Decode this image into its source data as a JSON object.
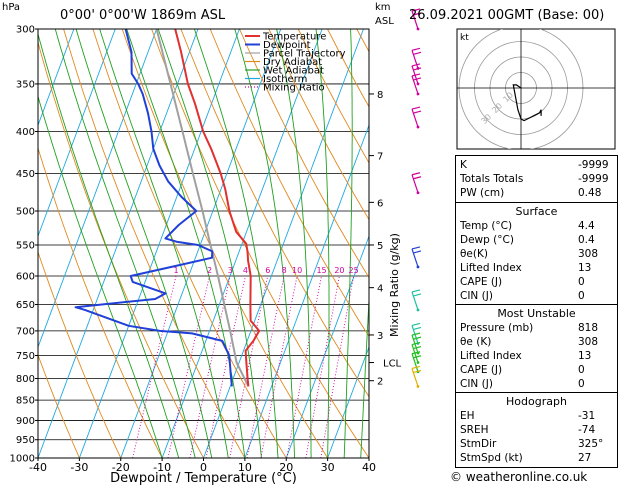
{
  "header": {
    "pressure_unit": "hPa",
    "location": "0°00'  0°00'W  1869m  ASL",
    "height_unit_line1": "km",
    "height_unit_line2": "ASL",
    "datetime": "26.09.2021  00GMT  (Base: 00)",
    "copyright": "© weatheronline.co.uk"
  },
  "colors": {
    "temperature": "#e03030",
    "dewpoint": "#2040d8",
    "parcel": "#a0a0a0",
    "dry_adiabat": "#e08a20",
    "wet_adiabat": "#20a020",
    "isotherm": "#20a8e0",
    "mixing_ratio": "#d000a0",
    "hodograph": "#000000"
  },
  "chart_data": {
    "type": "line",
    "xlabel": "Dewpoint / Temperature (°C)",
    "ylabel_right": "Mixing Ratio (g/kg)",
    "xlim": [
      -40,
      40
    ],
    "ylim": [
      1000,
      300
    ],
    "y_scale": "log",
    "x_ticks": [
      -40,
      -30,
      -20,
      -10,
      0,
      10,
      20,
      30,
      40
    ],
    "pressure_levels": [
      300,
      350,
      400,
      450,
      500,
      550,
      600,
      650,
      700,
      750,
      800,
      850,
      900,
      950,
      1000
    ],
    "height_ticks": [
      {
        "label": "8",
        "p": 360
      },
      {
        "label": "7",
        "p": 428
      },
      {
        "label": "6",
        "p": 488
      },
      {
        "label": "5",
        "p": 550
      },
      {
        "label": "4",
        "p": 620
      },
      {
        "label": "3",
        "p": 708
      },
      {
        "label": "LCL",
        "p": 765
      },
      {
        "label": "2",
        "p": 805
      }
    ],
    "mixing_ratio_labels": [
      "1",
      "2",
      "3",
      "4",
      "6",
      "8",
      "10",
      "15",
      "20",
      "25"
    ],
    "mixing_ratio_values": [
      1,
      2,
      3,
      4,
      6,
      8,
      10,
      15,
      20,
      25
    ],
    "legend": {
      "placement": "top-center",
      "entries": [
        "Temperature",
        "Dewpoint",
        "Parcel Trajectory",
        "Dry Adiabat",
        "Wet Adiabat",
        "Isotherm",
        "Mixing Ratio"
      ]
    },
    "series": [
      {
        "name": "Temperature",
        "points": [
          [
            818,
            4.4
          ],
          [
            800,
            3.5
          ],
          [
            760,
            1.5
          ],
          [
            740,
            0.5
          ],
          [
            720,
            1.5
          ],
          [
            700,
            2.0
          ],
          [
            680,
            -1.0
          ],
          [
            650,
            -2.5
          ],
          [
            600,
            -5.0
          ],
          [
            575,
            -7.0
          ],
          [
            560,
            -8.0
          ],
          [
            548,
            -9.0
          ],
          [
            530,
            -12.5
          ],
          [
            500,
            -16.0
          ],
          [
            470,
            -19.0
          ],
          [
            450,
            -21.5
          ],
          [
            420,
            -26.0
          ],
          [
            400,
            -29.5
          ],
          [
            370,
            -34.0
          ],
          [
            350,
            -37.5
          ],
          [
            320,
            -42.0
          ],
          [
            300,
            -45.5
          ]
        ]
      },
      {
        "name": "Dewpoint",
        "points": [
          [
            818,
            0.4
          ],
          [
            790,
            -1.0
          ],
          [
            750,
            -3.0
          ],
          [
            720,
            -6.0
          ],
          [
            705,
            -14.0
          ],
          [
            700,
            -22.0
          ],
          [
            690,
            -30.0
          ],
          [
            660,
            -42.0
          ],
          [
            655,
            -44.5
          ],
          [
            640,
            -26.0
          ],
          [
            630,
            -24.0
          ],
          [
            610,
            -33.0
          ],
          [
            600,
            -34.0
          ],
          [
            580,
            -22.0
          ],
          [
            570,
            -16.0
          ],
          [
            560,
            -16.5
          ],
          [
            550,
            -20.5
          ],
          [
            545,
            -26.0
          ],
          [
            540,
            -29.0
          ],
          [
            520,
            -27.0
          ],
          [
            500,
            -24.0
          ],
          [
            480,
            -29.0
          ],
          [
            460,
            -33.5
          ],
          [
            440,
            -37.0
          ],
          [
            420,
            -40.0
          ],
          [
            400,
            -42.0
          ],
          [
            380,
            -44.5
          ],
          [
            360,
            -47.5
          ],
          [
            350,
            -49.5
          ],
          [
            340,
            -52.0
          ],
          [
            320,
            -54.0
          ],
          [
            300,
            -57.5
          ]
        ]
      },
      {
        "name": "Parcel Trajectory",
        "points": [
          [
            818,
            4.4
          ],
          [
            765,
            -0.6
          ],
          [
            700,
            -5.0
          ],
          [
            650,
            -8.8
          ],
          [
            600,
            -12.9
          ],
          [
            550,
            -17.5
          ],
          [
            500,
            -22.5
          ],
          [
            450,
            -28.2
          ],
          [
            400,
            -34.5
          ],
          [
            350,
            -41.7
          ],
          [
            300,
            -50.0
          ]
        ]
      }
    ],
    "hodograph": {
      "label": "kt",
      "rings_kt": [
        10,
        20,
        30,
        40
      ],
      "ring_labels": [
        "10",
        "20",
        "30"
      ],
      "points_kt": [
        [
          0,
          0
        ],
        [
          -3,
          2
        ],
        [
          -5,
          2
        ],
        [
          -2,
          -14
        ],
        [
          0,
          -20
        ],
        [
          2,
          -21
        ],
        [
          6,
          -19
        ],
        [
          8,
          -18
        ],
        [
          12,
          -16
        ],
        [
          13,
          -14
        ],
        [
          13,
          -18
        ]
      ]
    },
    "wind_barbs": [
      {
        "p": 300,
        "color": "#d000a0"
      },
      {
        "p": 335,
        "color": "#d000a0"
      },
      {
        "p": 350,
        "color": "#d000a0"
      },
      {
        "p": 360,
        "color": "#d000a0"
      },
      {
        "p": 395,
        "color": "#d000a0"
      },
      {
        "p": 475,
        "color": "#d000a0"
      },
      {
        "p": 585,
        "color": "#2040d8"
      },
      {
        "p": 660,
        "color": "#20c0a0"
      },
      {
        "p": 725,
        "color": "#20c0a0"
      },
      {
        "p": 745,
        "color": "#20c020"
      },
      {
        "p": 765,
        "color": "#20c020"
      },
      {
        "p": 785,
        "color": "#20c020"
      },
      {
        "p": 818,
        "color": "#e0b000"
      }
    ]
  },
  "indices": [
    {
      "label": "K",
      "value": "-9999"
    },
    {
      "label": "Totals Totals",
      "value": "-9999"
    },
    {
      "label": "PW (cm)",
      "value": "0.48"
    }
  ],
  "surface": {
    "title": "Surface",
    "rows": [
      {
        "label": "Temp (°C)",
        "value": "4.4"
      },
      {
        "label": "Dewp (°C)",
        "value": "0.4"
      },
      {
        "label": "θe(K)",
        "value": "308"
      },
      {
        "label": "Lifted Index",
        "value": "13"
      },
      {
        "label": "CAPE (J)",
        "value": "0"
      },
      {
        "label": "CIN (J)",
        "value": "0"
      }
    ]
  },
  "most_unstable": {
    "title": "Most Unstable",
    "rows": [
      {
        "label": "Pressure (mb)",
        "value": "818"
      },
      {
        "label": "θe (K)",
        "value": "308"
      },
      {
        "label": "Lifted Index",
        "value": "13"
      },
      {
        "label": "CAPE (J)",
        "value": "0"
      },
      {
        "label": "CIN (J)",
        "value": "0"
      }
    ]
  },
  "hodograph_table": {
    "title": "Hodograph",
    "rows": [
      {
        "label": "EH",
        "value": "-31"
      },
      {
        "label": "SREH",
        "value": "-74"
      },
      {
        "label": "StmDir",
        "value": "325°"
      },
      {
        "label": "StmSpd (kt)",
        "value": "27"
      }
    ]
  }
}
